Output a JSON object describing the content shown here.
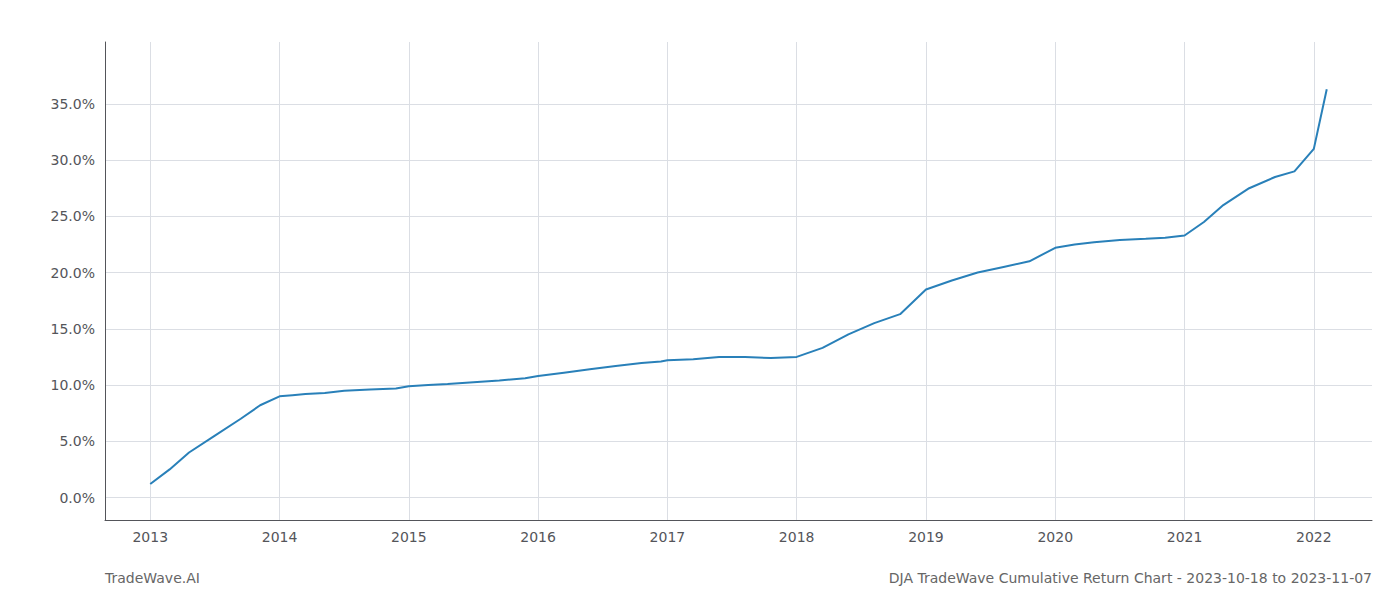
{
  "chart_data": {
    "type": "line",
    "x": [
      2013.0,
      2013.15,
      2013.3,
      2013.5,
      2013.7,
      2013.85,
      2014.0,
      2014.1,
      2014.2,
      2014.35,
      2014.5,
      2014.7,
      2014.9,
      2015.0,
      2015.15,
      2015.3,
      2015.5,
      2015.7,
      2015.9,
      2016.0,
      2016.2,
      2016.4,
      2016.6,
      2016.8,
      2016.95,
      2017.0,
      2017.1,
      2017.2,
      2017.4,
      2017.6,
      2017.8,
      2018.0,
      2018.2,
      2018.4,
      2018.6,
      2018.8,
      2019.0,
      2019.2,
      2019.4,
      2019.6,
      2019.8,
      2020.0,
      2020.15,
      2020.3,
      2020.5,
      2020.7,
      2020.85,
      2021.0,
      2021.15,
      2021.3,
      2021.5,
      2021.7,
      2021.85,
      2022.0,
      2022.1
    ],
    "values": [
      1.2,
      2.5,
      4.0,
      5.5,
      7.0,
      8.2,
      9.0,
      9.1,
      9.2,
      9.3,
      9.5,
      9.6,
      9.7,
      9.9,
      10.0,
      10.1,
      10.25,
      10.4,
      10.6,
      10.8,
      11.1,
      11.4,
      11.7,
      11.95,
      12.1,
      12.2,
      12.25,
      12.3,
      12.5,
      12.5,
      12.4,
      12.5,
      13.3,
      14.5,
      15.5,
      16.3,
      18.5,
      19.3,
      20.0,
      20.5,
      21.0,
      22.2,
      22.5,
      22.7,
      22.9,
      23.0,
      23.1,
      23.3,
      24.5,
      26.0,
      27.5,
      28.5,
      29.0,
      31.0,
      36.3
    ],
    "color": "#2980b9",
    "xlim": [
      2012.65,
      2022.45
    ],
    "ylim": [
      -2.0,
      40.5
    ],
    "xticks": [
      2013,
      2014,
      2015,
      2016,
      2017,
      2018,
      2019,
      2020,
      2021,
      2022
    ],
    "yticks": [
      {
        "value": 0.0,
        "label": "0.0%"
      },
      {
        "value": 5.0,
        "label": "5.0%"
      },
      {
        "value": 10.0,
        "label": "10.0%"
      },
      {
        "value": 15.0,
        "label": "15.0%"
      },
      {
        "value": 20.0,
        "label": "20.0%"
      },
      {
        "value": 25.0,
        "label": "25.0%"
      },
      {
        "value": 30.0,
        "label": "30.0%"
      },
      {
        "value": 35.0,
        "label": "35.0%"
      }
    ],
    "grid": true,
    "annotations": [
      "TradeWave.AI",
      "DJA TradeWave Cumulative Return Chart - 2023-10-18 to 2023-11-07"
    ]
  }
}
